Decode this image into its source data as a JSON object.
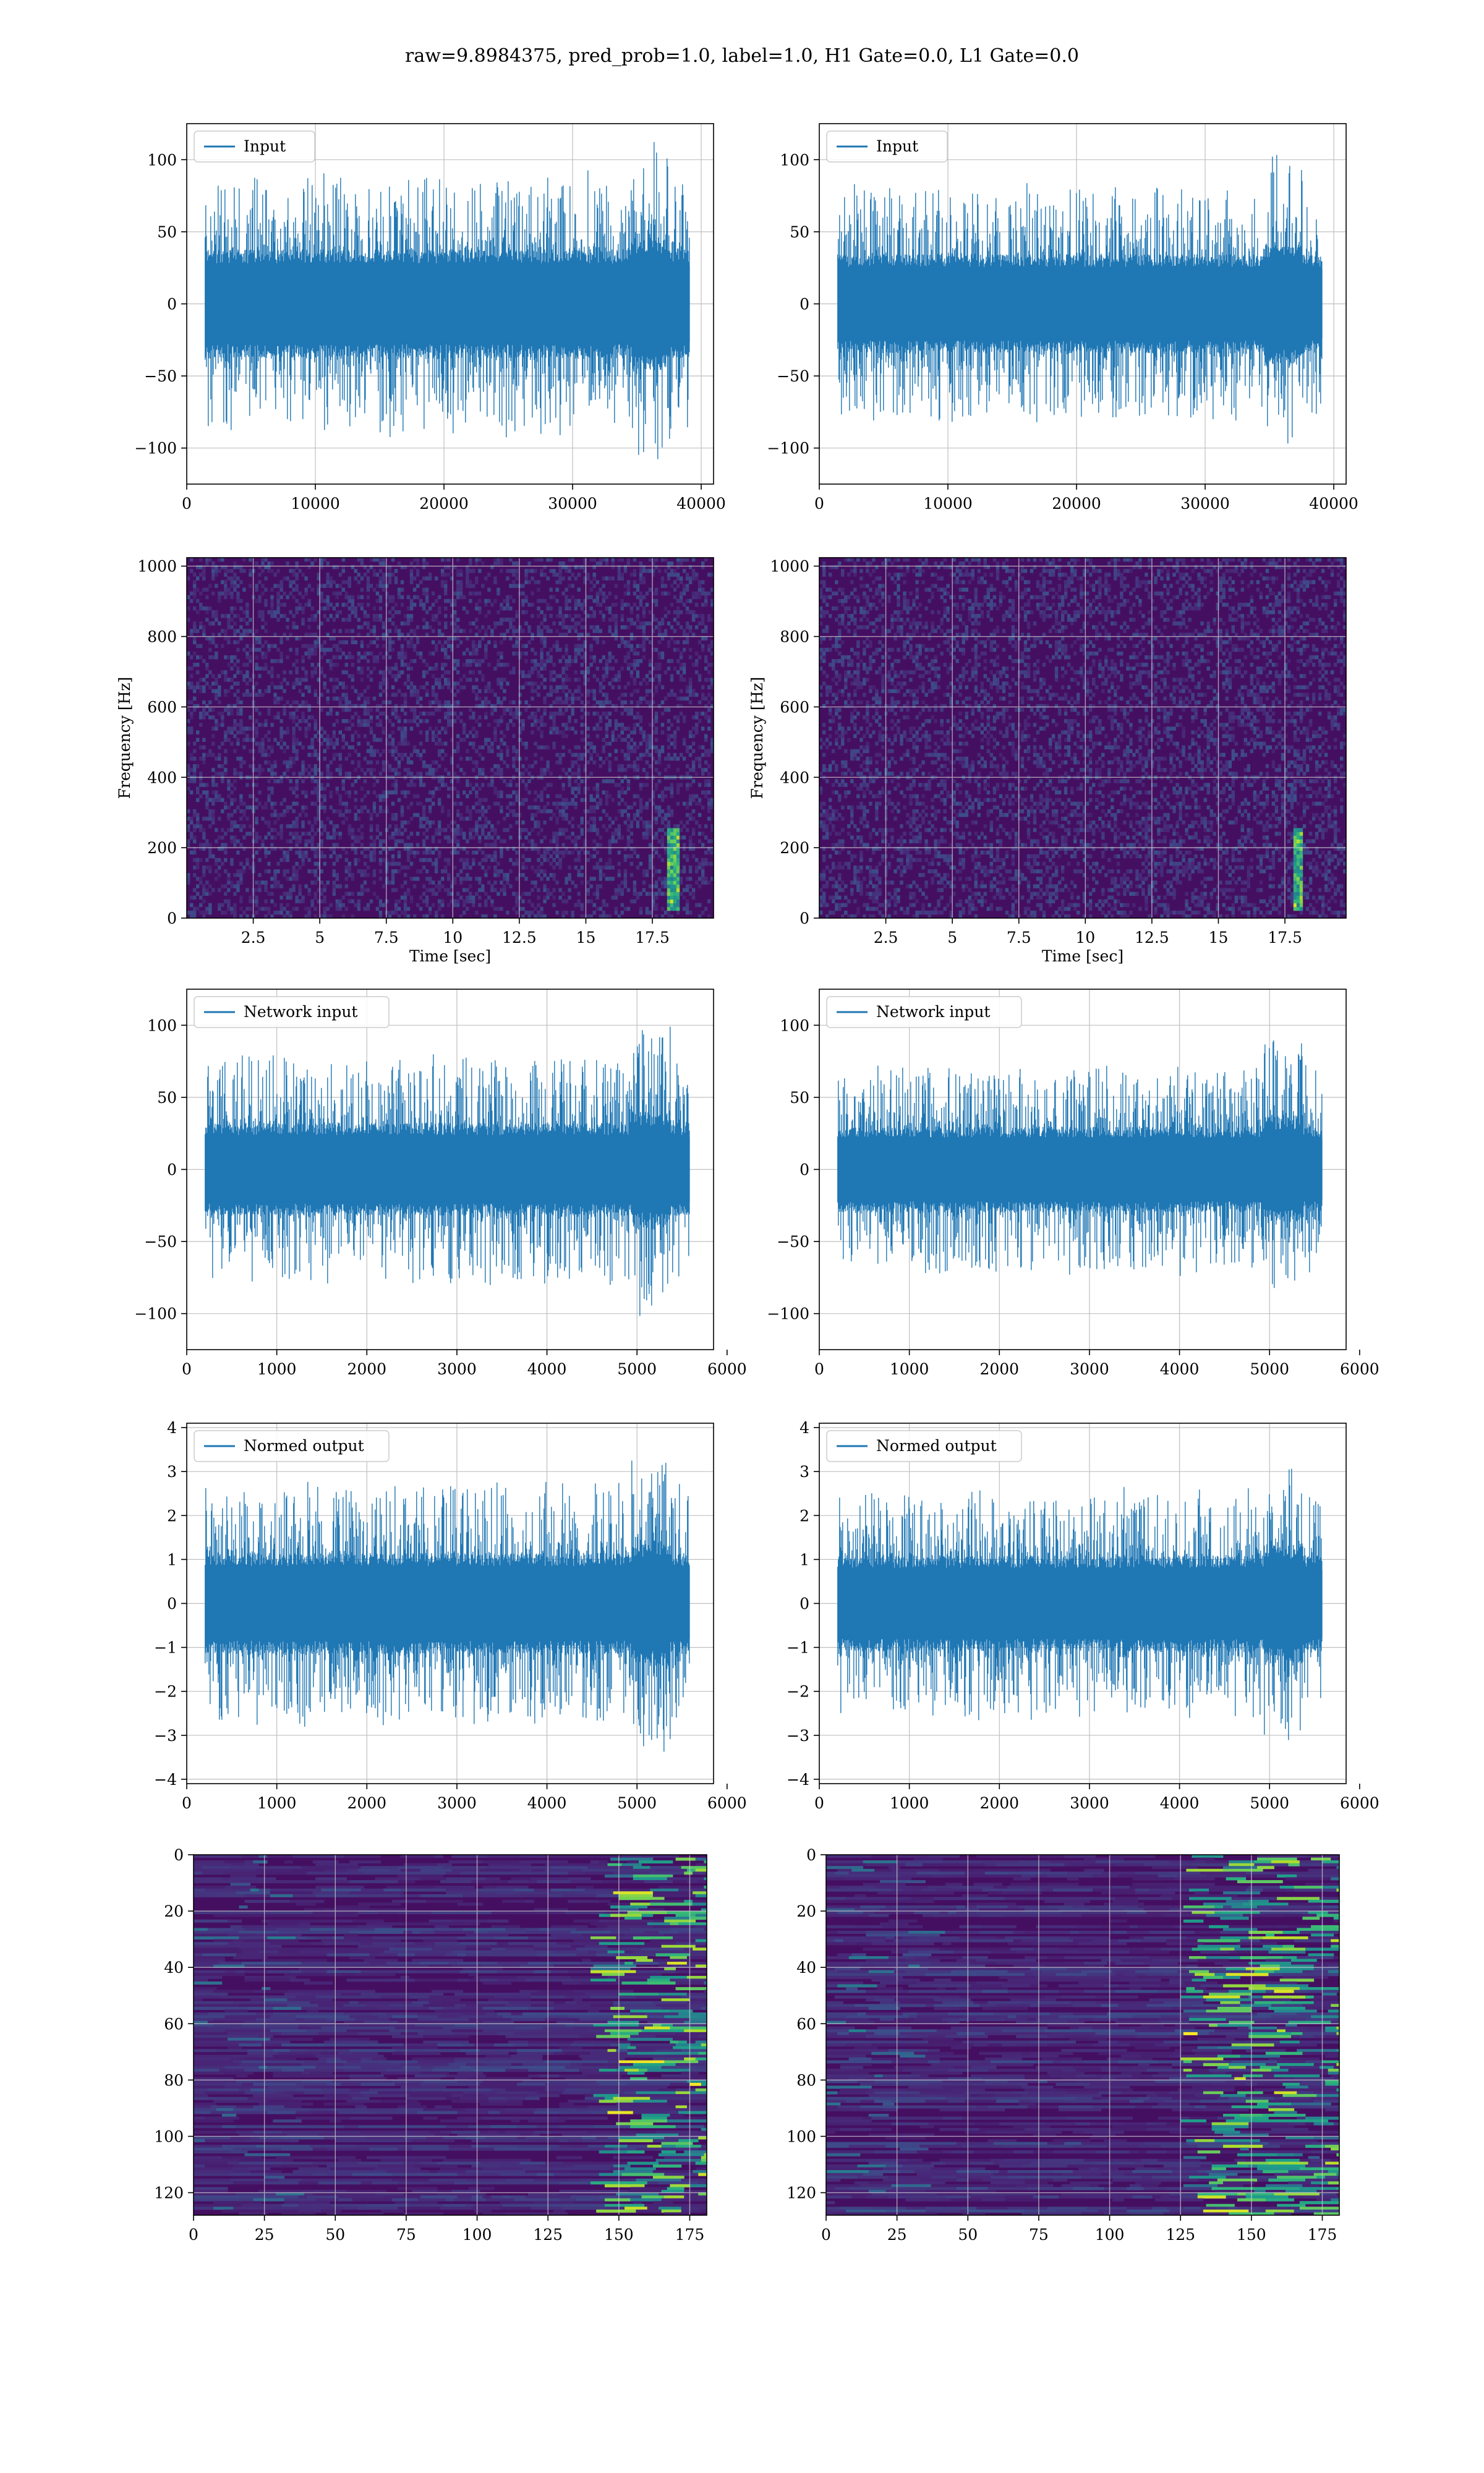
{
  "figure": {
    "title": "raw=9.8984375, pred_prob=1.0, label=1.0, H1 Gate=0.0, L1 Gate=0.0"
  },
  "chart_data": [
    {
      "type": "line",
      "row": 0,
      "col": 0,
      "legend": "Input",
      "legend_loc": "upper-left",
      "x_range": [
        0,
        40960
      ],
      "y_range": [
        -125,
        125
      ],
      "amp": 33,
      "spike": 55,
      "grid": true,
      "xticks": [
        0,
        10000,
        20000,
        30000,
        40000
      ],
      "yticks": [
        -100,
        -50,
        0,
        50,
        100
      ],
      "xlabel": "",
      "ylabel": "",
      "color": "#1f77b4"
    },
    {
      "type": "line",
      "row": 0,
      "col": 1,
      "legend": "Input",
      "legend_loc": "upper-left",
      "x_range": [
        0,
        40960
      ],
      "y_range": [
        -125,
        125
      ],
      "amp": 30,
      "spike": 50,
      "grid": true,
      "xticks": [
        0,
        10000,
        20000,
        30000,
        40000
      ],
      "yticks": [
        -100,
        -50,
        0,
        50,
        100
      ],
      "xlabel": "",
      "ylabel": "",
      "color": "#1f77b4"
    },
    {
      "type": "heatmap",
      "row": 1,
      "col": 0,
      "x_range": [
        0,
        19.8
      ],
      "y_range": [
        0,
        1024
      ],
      "xticks": [
        2.5,
        5.0,
        7.5,
        10.0,
        12.5,
        15.0,
        17.5
      ],
      "yticks": [
        0,
        200,
        400,
        600,
        800,
        1000
      ],
      "xlabel": "Time [sec]",
      "ylabel": "Frequency [Hz]",
      "grid": true,
      "colormap": "viridis",
      "chirp_time": 18.3,
      "seed": 11
    },
    {
      "type": "heatmap",
      "row": 1,
      "col": 1,
      "x_range": [
        0,
        19.8
      ],
      "y_range": [
        0,
        1024
      ],
      "xticks": [
        2.5,
        5.0,
        7.5,
        10.0,
        12.5,
        15.0,
        17.5
      ],
      "yticks": [
        0,
        200,
        400,
        600,
        800,
        1000
      ],
      "xlabel": "Time [sec]",
      "ylabel": "Frequency [Hz]",
      "grid": true,
      "colormap": "viridis",
      "chirp_time": 18.0,
      "seed": 23
    },
    {
      "type": "line",
      "row": 2,
      "col": 0,
      "legend": "Network input",
      "legend_loc": "upper-left",
      "x_range": [
        0,
        5850
      ],
      "y_range": [
        -125,
        125
      ],
      "amp": 28,
      "spike": 50,
      "grid": true,
      "xticks": [
        0,
        1000,
        2000,
        3000,
        4000,
        5000,
        6000
      ],
      "yticks": [
        -100,
        -50,
        0,
        50,
        100
      ],
      "xlabel": "",
      "ylabel": "",
      "color": "#1f77b4"
    },
    {
      "type": "line",
      "row": 2,
      "col": 1,
      "legend": "Network input",
      "legend_loc": "upper-left",
      "x_range": [
        0,
        5850
      ],
      "y_range": [
        -125,
        125
      ],
      "amp": 26,
      "spike": 45,
      "grid": true,
      "xticks": [
        0,
        1000,
        2000,
        3000,
        4000,
        5000,
        6000
      ],
      "yticks": [
        -100,
        -50,
        0,
        50,
        100
      ],
      "xlabel": "",
      "ylabel": "",
      "color": "#1f77b4"
    },
    {
      "type": "line",
      "row": 3,
      "col": 0,
      "legend": "Normed output",
      "legend_loc": "upper-left",
      "x_range": [
        0,
        5850
      ],
      "y_range": [
        -4.1,
        4.1
      ],
      "amp": 1.0,
      "spike": 1.7,
      "grid": true,
      "xticks": [
        0,
        1000,
        2000,
        3000,
        4000,
        5000,
        6000
      ],
      "yticks": [
        -4,
        -3,
        -2,
        -1,
        0,
        1,
        2,
        3,
        4
      ],
      "xlabel": "",
      "ylabel": "",
      "color": "#1f77b4"
    },
    {
      "type": "line",
      "row": 3,
      "col": 1,
      "legend": "Normed output",
      "legend_loc": "upper-left",
      "x_range": [
        0,
        5850
      ],
      "y_range": [
        -4.1,
        4.1
      ],
      "amp": 0.95,
      "spike": 1.6,
      "grid": true,
      "xticks": [
        0,
        1000,
        2000,
        3000,
        4000,
        5000,
        6000
      ],
      "yticks": [
        -4,
        -3,
        -2,
        -1,
        0,
        1,
        2,
        3,
        4
      ],
      "xlabel": "",
      "ylabel": "",
      "color": "#1f77b4"
    },
    {
      "type": "heatmap",
      "row": 4,
      "col": 0,
      "x_range": [
        0,
        181
      ],
      "y_range": [
        0,
        128
      ],
      "y_inverted": true,
      "xticks": [
        0,
        25,
        50,
        75,
        100,
        125,
        150,
        175
      ],
      "yticks": [
        0,
        20,
        40,
        60,
        80,
        100,
        120
      ],
      "xlabel": "",
      "ylabel": "",
      "grid": true,
      "colormap": "viridis",
      "hot_start": 140,
      "seed": 37
    },
    {
      "type": "heatmap",
      "row": 4,
      "col": 1,
      "x_range": [
        0,
        181
      ],
      "y_range": [
        0,
        128
      ],
      "y_inverted": true,
      "xticks": [
        0,
        25,
        50,
        75,
        100,
        125,
        150,
        175
      ],
      "yticks": [
        0,
        20,
        40,
        60,
        80,
        100,
        120
      ],
      "xlabel": "",
      "ylabel": "",
      "grid": true,
      "colormap": "viridis",
      "hot_start": 125,
      "seed": 51
    }
  ]
}
